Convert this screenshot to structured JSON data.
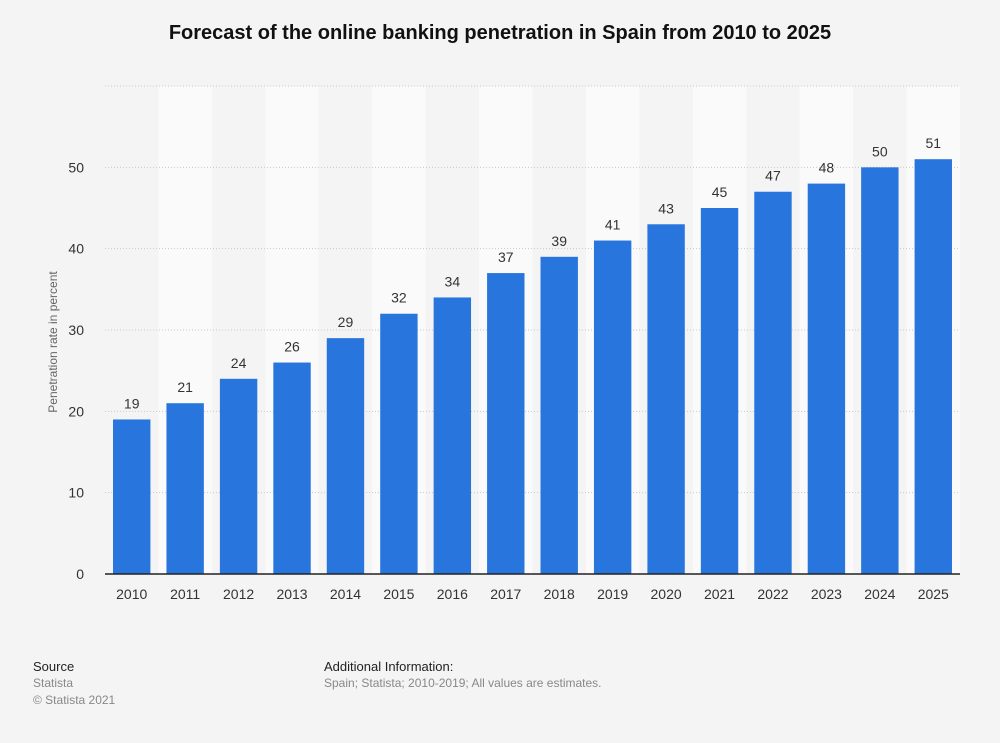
{
  "chart_data": {
    "type": "bar",
    "title": "Forecast of the online banking penetration in Spain from 2010 to 2025",
    "ylabel": "Penetration rate in percent",
    "xlabel": "",
    "categories": [
      "2010",
      "2011",
      "2012",
      "2013",
      "2014",
      "2015",
      "2016",
      "2017",
      "2018",
      "2019",
      "2020",
      "2021",
      "2022",
      "2023",
      "2024",
      "2025"
    ],
    "values": [
      19,
      21,
      24,
      26,
      29,
      32,
      34,
      37,
      39,
      41,
      43,
      45,
      47,
      48,
      50,
      51
    ],
    "ylim": [
      0,
      60
    ],
    "yticks": [
      0,
      10,
      20,
      30,
      40,
      50
    ],
    "grid": true,
    "bar_color": "#2876dd"
  },
  "footer": {
    "source_heading": "Source",
    "source_lines": [
      "Statista",
      "© Statista 2021"
    ],
    "info_heading": "Additional Information:",
    "info_text": "Spain; Statista; 2010-2019; All values are estimates."
  }
}
